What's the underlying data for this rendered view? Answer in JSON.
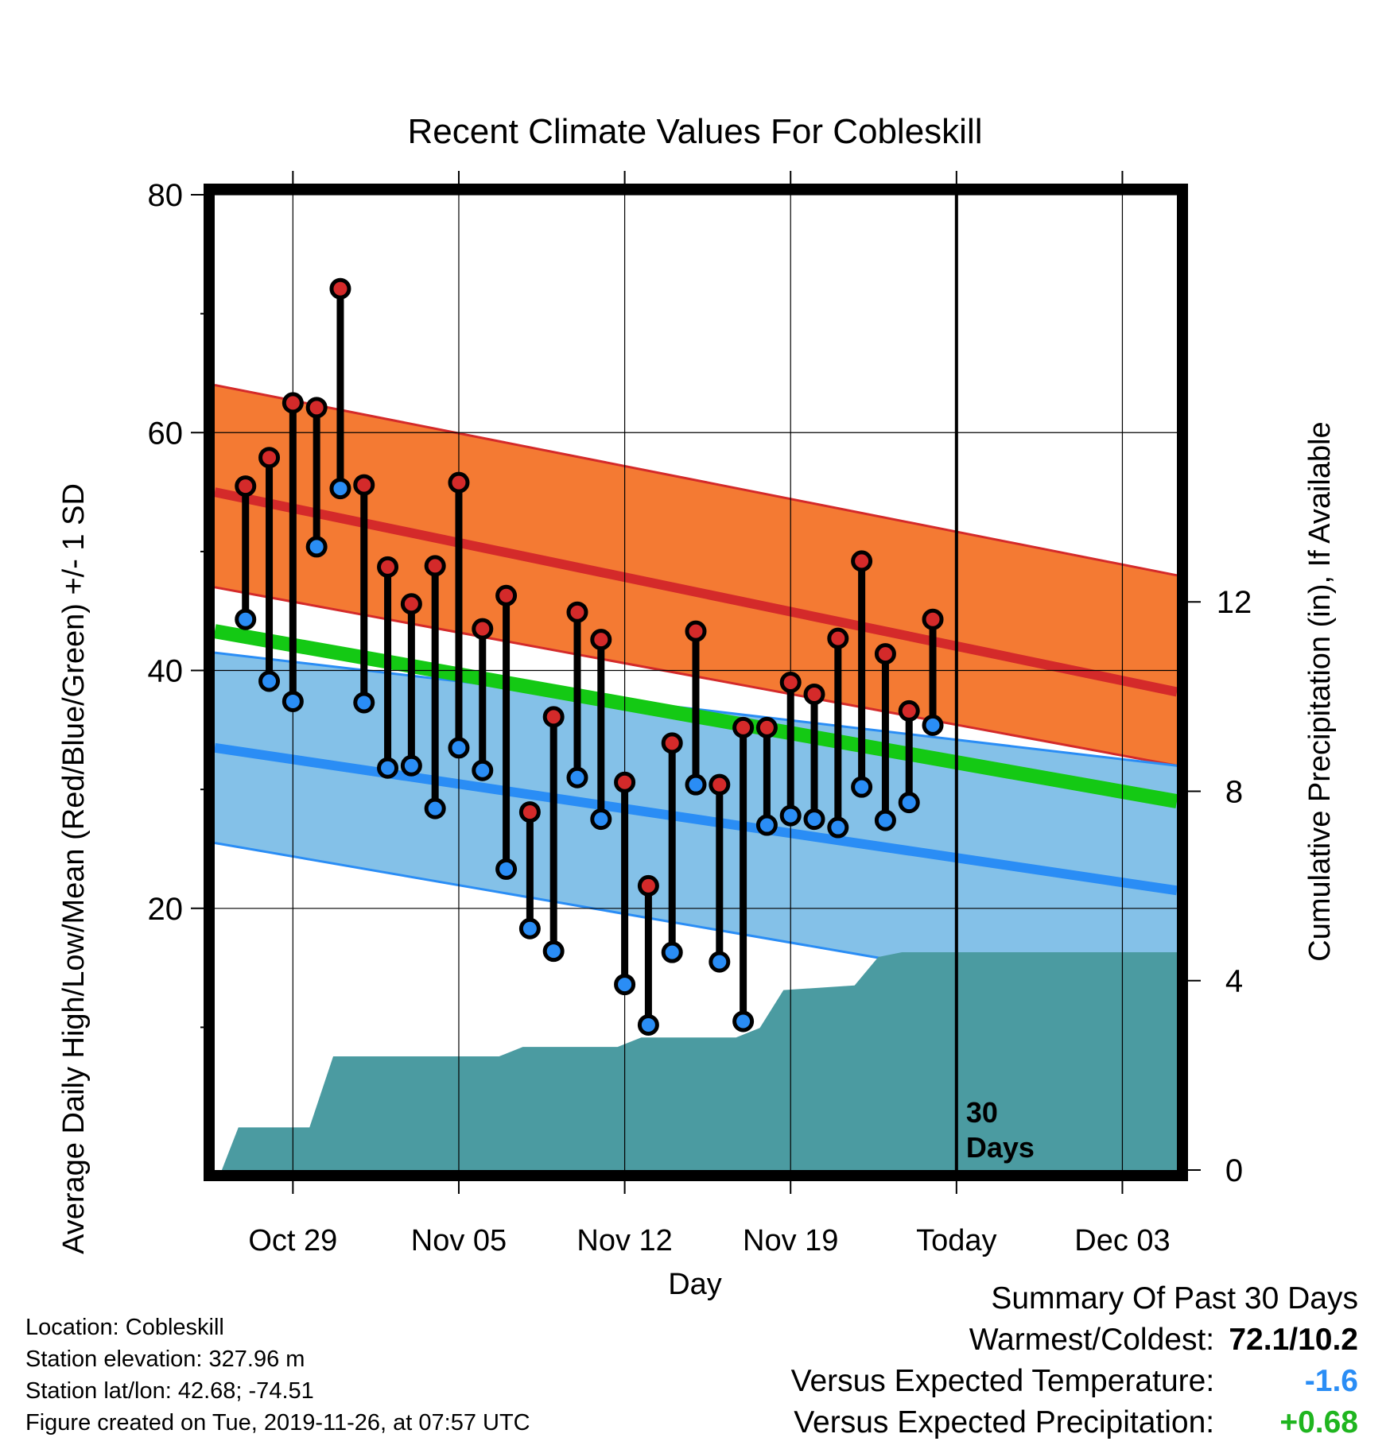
{
  "chart_data": {
    "type": "line",
    "title": "Recent Climate Values For Cobleskill",
    "xlabel": "Day",
    "ylabel": "Average Daily High/Low/Mean (Red/Blue/Green) +/- 1 SD",
    "y2label": "Cumulative Precipitation (in), If Available",
    "x_ticks": [
      "Oct 29",
      "Nov 05",
      "Nov 12",
      "Nov 19",
      "Today",
      "Dec 03"
    ],
    "x_tick_days": [
      3,
      10,
      17,
      24,
      31,
      38
    ],
    "xlim": [
      -0.3,
      40.3
    ],
    "ylim": [
      -2,
      80
    ],
    "y_ticks": [
      20,
      40,
      60,
      80
    ],
    "y2lim": [
      0,
      20.6
    ],
    "y2_ticks": [
      0,
      4,
      8,
      12
    ],
    "today_day": 31,
    "today_label": [
      "30",
      "Days"
    ],
    "grid": true,
    "observed": {
      "highs": [
        55.5,
        57.9,
        62.5,
        62.1,
        72.1,
        55.6,
        48.7,
        45.6,
        48.8,
        55.8,
        43.5,
        46.3,
        28.1,
        36.1,
        44.9,
        42.6,
        30.6,
        21.9,
        33.9,
        43.3,
        30.4,
        35.2,
        35.2,
        39.0,
        38.0,
        42.7,
        49.2,
        41.4,
        36.6,
        44.3
      ],
      "lows": [
        44.3,
        39.1,
        37.4,
        50.4,
        55.3,
        37.3,
        31.8,
        32.0,
        28.4,
        33.5,
        31.6,
        23.3,
        18.3,
        16.4,
        31.0,
        27.5,
        13.6,
        10.2,
        16.3,
        30.4,
        15.5,
        10.5,
        27.0,
        27.8,
        27.5,
        26.8,
        30.2,
        27.4,
        28.9,
        35.4
      ]
    },
    "normals": {
      "high_mean": [
        55.0,
        38.2
      ],
      "high_plus_sd": [
        64.0,
        48.0
      ],
      "high_minus_sd": [
        47.0,
        32.0
      ],
      "low_mean": [
        33.5,
        21.5
      ],
      "low_plus_sd": [
        41.5,
        32.0
      ],
      "low_minus_sd": [
        25.5,
        11.5
      ],
      "mean_temp": [
        43.3,
        29.0
      ]
    },
    "precipitation": {
      "days": [
        0,
        0.7,
        3.7,
        4.7,
        11.7,
        12.7,
        16.7,
        17.7,
        21.7,
        22.7,
        23.7,
        26.7,
        27.7,
        28.7,
        31,
        40.3
      ],
      "cumulative": [
        0,
        0.9,
        0.9,
        2.4,
        2.4,
        2.6,
        2.6,
        2.8,
        2.8,
        3.0,
        3.8,
        3.9,
        4.5,
        4.6,
        4.6,
        4.6
      ]
    },
    "colors": {
      "high_band": "#f47a33",
      "high_line": "#d42a2a",
      "low_band": "#84c1e8",
      "low_line": "#2a8df5",
      "overlap": "#961818",
      "mean_line": "#14c914",
      "precip": "#4b9ba1",
      "high_dot": "#d42a2a",
      "low_dot": "#2a8df5"
    }
  },
  "info": {
    "location": "Location: Cobleskill",
    "elevation": "Station elevation: 327.96 m",
    "latlon": "Station lat/lon: 42.68; -74.51",
    "created": "Figure created on Tue, 2019-11-26, at 07:57 UTC"
  },
  "summary": {
    "title": "Summary Of Past 30 Days",
    "warmest_label": "Warmest/Coldest:",
    "warmest_value": "72.1/10.2",
    "temp_label": "Versus Expected Temperature:",
    "temp_value": "-1.6",
    "temp_color": "#2a8df5",
    "precip_label": "Versus Expected Precipitation:",
    "precip_value": "+0.68",
    "precip_color": "#1fb51f"
  }
}
